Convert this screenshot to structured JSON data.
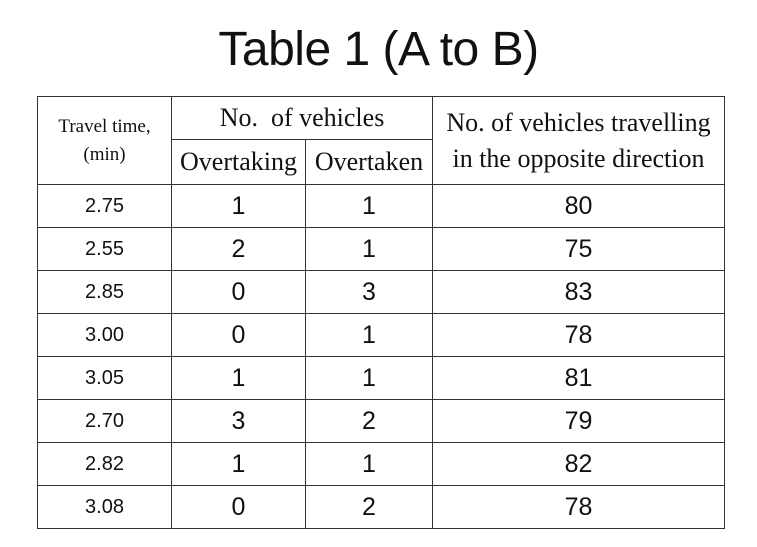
{
  "title": "Table 1 (A to B)",
  "headers": {
    "travel_time": "Travel time,",
    "travel_time_unit": "(min)",
    "vehicles_group": "No.  of vehicles",
    "overtaking": "Overtaking",
    "overtaken": "Overtaken",
    "opposite_line1": "No. of vehicles travelling",
    "opposite_line2": "in the opposite direction"
  },
  "rows": [
    {
      "travel_time": "2.75",
      "overtaking": "1",
      "overtaken": "1",
      "opposite": "80"
    },
    {
      "travel_time": "2.55",
      "overtaking": "2",
      "overtaken": "1",
      "opposite": "75"
    },
    {
      "travel_time": "2.85",
      "overtaking": "0",
      "overtaken": "3",
      "opposite": "83"
    },
    {
      "travel_time": "3.00",
      "overtaking": "0",
      "overtaken": "1",
      "opposite": "78"
    },
    {
      "travel_time": "3.05",
      "overtaking": "1",
      "overtaken": "1",
      "opposite": "81"
    },
    {
      "travel_time": "2.70",
      "overtaking": "3",
      "overtaken": "2",
      "opposite": "79"
    },
    {
      "travel_time": "2.82",
      "overtaking": "1",
      "overtaken": "1",
      "opposite": "82"
    },
    {
      "travel_time": "3.08",
      "overtaking": "0",
      "overtaken": "2",
      "opposite": "78"
    }
  ]
}
